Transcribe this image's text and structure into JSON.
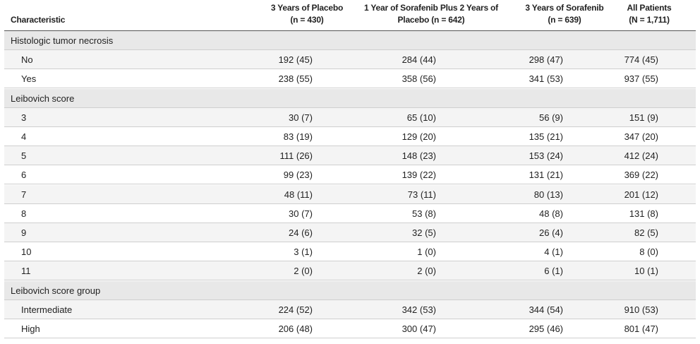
{
  "table": {
    "headers": [
      [
        "Characteristic"
      ],
      [
        "3 Years of Placebo",
        "(n = 430)"
      ],
      [
        "1 Year of Sorafenib Plus 2 Years of",
        "Placebo (n = 642)"
      ],
      [
        "3 Years of Sorafenib",
        "(n = 639)"
      ],
      [
        "All Patients",
        "(N = 1,711)"
      ]
    ],
    "sections": [
      {
        "label": "Histologic tumor necrosis",
        "rows": [
          {
            "label": "No",
            "values": [
              "192 (45)",
              "284 (44)",
              "298 (47)",
              "774 (45)"
            ]
          },
          {
            "label": "Yes",
            "values": [
              "238 (55)",
              "358 (56)",
              "341 (53)",
              "937 (55)"
            ]
          }
        ]
      },
      {
        "label": "Leibovich score",
        "rows": [
          {
            "label": "3",
            "values": [
              "30 (7)",
              "65 (10)",
              "56 (9)",
              "151 (9)"
            ]
          },
          {
            "label": "4",
            "values": [
              "83 (19)",
              "129 (20)",
              "135 (21)",
              "347 (20)"
            ]
          },
          {
            "label": "5",
            "values": [
              "111 (26)",
              "148 (23)",
              "153 (24)",
              "412 (24)"
            ]
          },
          {
            "label": "6",
            "values": [
              "99 (23)",
              "139 (22)",
              "131 (21)",
              "369 (22)"
            ]
          },
          {
            "label": "7",
            "values": [
              "48 (11)",
              "73 (11)",
              "80 (13)",
              "201 (12)"
            ]
          },
          {
            "label": "8",
            "values": [
              "30 (7)",
              "53 (8)",
              "48 (8)",
              "131 (8)"
            ]
          },
          {
            "label": "9",
            "values": [
              "24 (6)",
              "32 (5)",
              "26 (4)",
              "82 (5)"
            ]
          },
          {
            "label": "10",
            "values": [
              "3 (1)",
              "1 (0)",
              "4 (1)",
              "8 (0)"
            ]
          },
          {
            "label": "11",
            "values": [
              "2 (0)",
              "2 (0)",
              "6 (1)",
              "10 (1)"
            ]
          }
        ]
      },
      {
        "label": "Leibovich score group",
        "rows": [
          {
            "label": "Intermediate",
            "values": [
              "224 (52)",
              "342 (53)",
              "344 (54)",
              "910 (53)"
            ]
          },
          {
            "label": "High",
            "values": [
              "206 (48)",
              "300 (47)",
              "295 (46)",
              "801 (47)"
            ]
          }
        ]
      }
    ]
  }
}
